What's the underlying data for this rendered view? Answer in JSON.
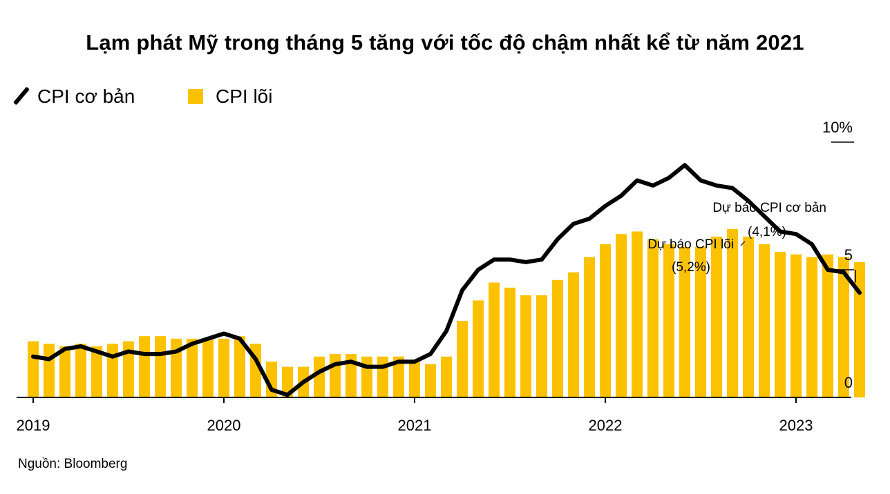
{
  "title": "Lạm phát Mỹ trong tháng 5 tăng với tốc độ chậm nhất kể từ năm 2021",
  "legend": {
    "line_label": "CPI cơ bản",
    "bar_label": "CPI lõi"
  },
  "source": "Nguồn: Bloomberg",
  "colors": {
    "bar": "#FCC200",
    "line": "#000000",
    "axis": "#000000"
  },
  "chart_data": {
    "type": "bar+line",
    "x_start": "2019-01",
    "x_ticks": [
      {
        "label": "2019",
        "month_index": 0
      },
      {
        "label": "2020",
        "month_index": 12
      },
      {
        "label": "2021",
        "month_index": 24
      },
      {
        "label": "2022",
        "month_index": 36
      },
      {
        "label": "2023",
        "month_index": 48
      }
    ],
    "y_ticks": [
      {
        "label": "10%",
        "value": 10
      },
      {
        "label": "5",
        "value": 5
      },
      {
        "label": "0",
        "value": 0
      }
    ],
    "ylim": [
      0,
      10
    ],
    "grid": false,
    "series": [
      {
        "name": "CPI lõi",
        "type": "bar",
        "values": [
          2.2,
          2.1,
          2.0,
          2.1,
          2.0,
          2.1,
          2.2,
          2.4,
          2.4,
          2.3,
          2.3,
          2.3,
          2.3,
          2.4,
          2.1,
          1.4,
          1.2,
          1.2,
          1.6,
          1.7,
          1.7,
          1.6,
          1.6,
          1.6,
          1.4,
          1.3,
          1.6,
          3.0,
          3.8,
          4.5,
          4.3,
          4.0,
          4.0,
          4.6,
          4.9,
          5.5,
          6.0,
          6.4,
          6.5,
          6.2,
          6.0,
          5.9,
          5.9,
          6.3,
          6.6,
          6.3,
          6.0,
          5.7,
          5.6,
          5.5,
          5.6,
          5.5,
          5.3
        ]
      },
      {
        "name": "CPI cơ bản",
        "type": "line",
        "values": [
          1.6,
          1.5,
          1.9,
          2.0,
          1.8,
          1.6,
          1.8,
          1.7,
          1.7,
          1.8,
          2.1,
          2.3,
          2.5,
          2.3,
          1.5,
          0.3,
          0.1,
          0.6,
          1.0,
          1.3,
          1.4,
          1.2,
          1.2,
          1.4,
          1.4,
          1.7,
          2.6,
          4.2,
          5.0,
          5.4,
          5.4,
          5.3,
          5.4,
          6.2,
          6.8,
          7.0,
          7.5,
          7.9,
          8.5,
          8.3,
          8.6,
          9.1,
          8.5,
          8.3,
          8.2,
          7.7,
          7.1,
          6.5,
          6.4,
          6.0,
          5.0,
          4.9,
          4.1
        ]
      }
    ],
    "annotations": [
      {
        "series": "CPI cơ bản",
        "line1": "Dự báo CPI cơ bản",
        "line2": "(4,1%)",
        "forecast_value": 4.1
      },
      {
        "series": "CPI lõi",
        "line1": "Dự báo CPI lõi",
        "line2": "(5,2%)",
        "forecast_value": 5.2
      }
    ]
  }
}
